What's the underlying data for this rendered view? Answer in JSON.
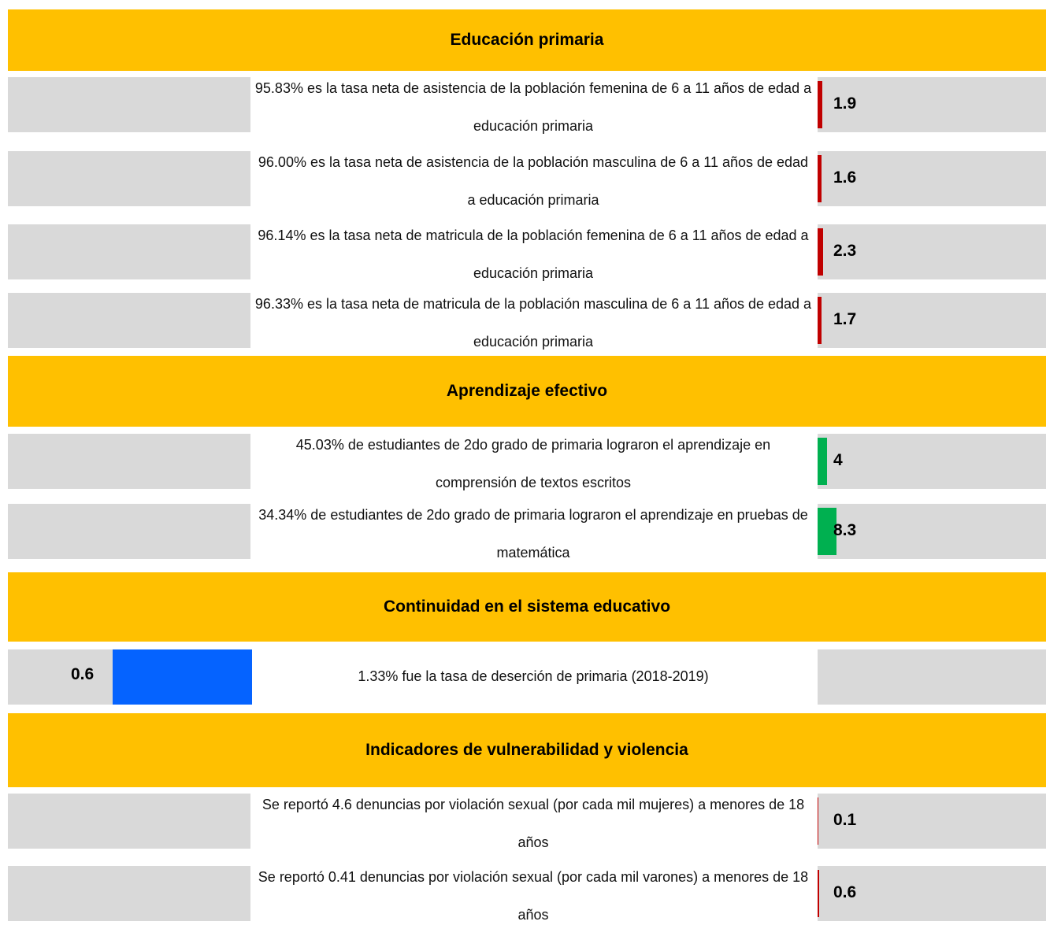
{
  "sections": [
    {
      "title": "Educación primaria",
      "rows": [
        {
          "text": "95.83% es la tasa neta de asistencia de la población femenina de 6 a 11 años de edad a educación primaria",
          "value": 1.9,
          "side": "right",
          "color": "#c00000"
        },
        {
          "text": "96.00% es la tasa neta de asistencia de la población masculina de 6 a 11 años de edad a educación primaria",
          "value": 1.6,
          "side": "right",
          "color": "#c00000"
        },
        {
          "text": "96.14% es la tasa neta de matricula de la población femenina de 6 a 11 años de edad a educación primaria",
          "value": 2.3,
          "side": "right",
          "color": "#c00000"
        },
        {
          "text": "96.33% es la tasa neta de matricula de la población masculina de 6 a 11 años de edad a educación primaria",
          "value": 1.7,
          "side": "right",
          "color": "#c00000"
        }
      ]
    },
    {
      "title": "Aprendizaje efectivo",
      "rows": [
        {
          "text": "45.03% de estudiantes de 2do grado de primaria lograron el aprendizaje en comprensión de textos escritos",
          "value": 4.0,
          "side": "right",
          "color": "#00b050"
        },
        {
          "text": "34.34% de estudiantes de 2do grado de primaria lograron el aprendizaje en pruebas de matemática",
          "value": 8.3,
          "side": "right",
          "color": "#00b050"
        }
      ]
    },
    {
      "title": "Continuidad en el sistema educativo",
      "rows": [
        {
          "text": "1.33% fue la tasa de deserción de primaria (2018-2019)",
          "value": 0.6,
          "side": "left",
          "color": "#0563ff"
        }
      ]
    },
    {
      "title": "Indicadores de vulnerabilidad y violencia",
      "rows": [
        {
          "text": "Se reportó 4.6 denuncias por violación sexual (por cada mil mujeres) a menores de 18 años",
          "value": 0.1,
          "side": "right",
          "color": "#c00000"
        },
        {
          "text": "Se reportó 0.41 denuncias por violación sexual (por cada mil varones) a menores de 18 años",
          "value": 0.6,
          "side": "right",
          "color": "#c00000"
        }
      ]
    }
  ]
}
